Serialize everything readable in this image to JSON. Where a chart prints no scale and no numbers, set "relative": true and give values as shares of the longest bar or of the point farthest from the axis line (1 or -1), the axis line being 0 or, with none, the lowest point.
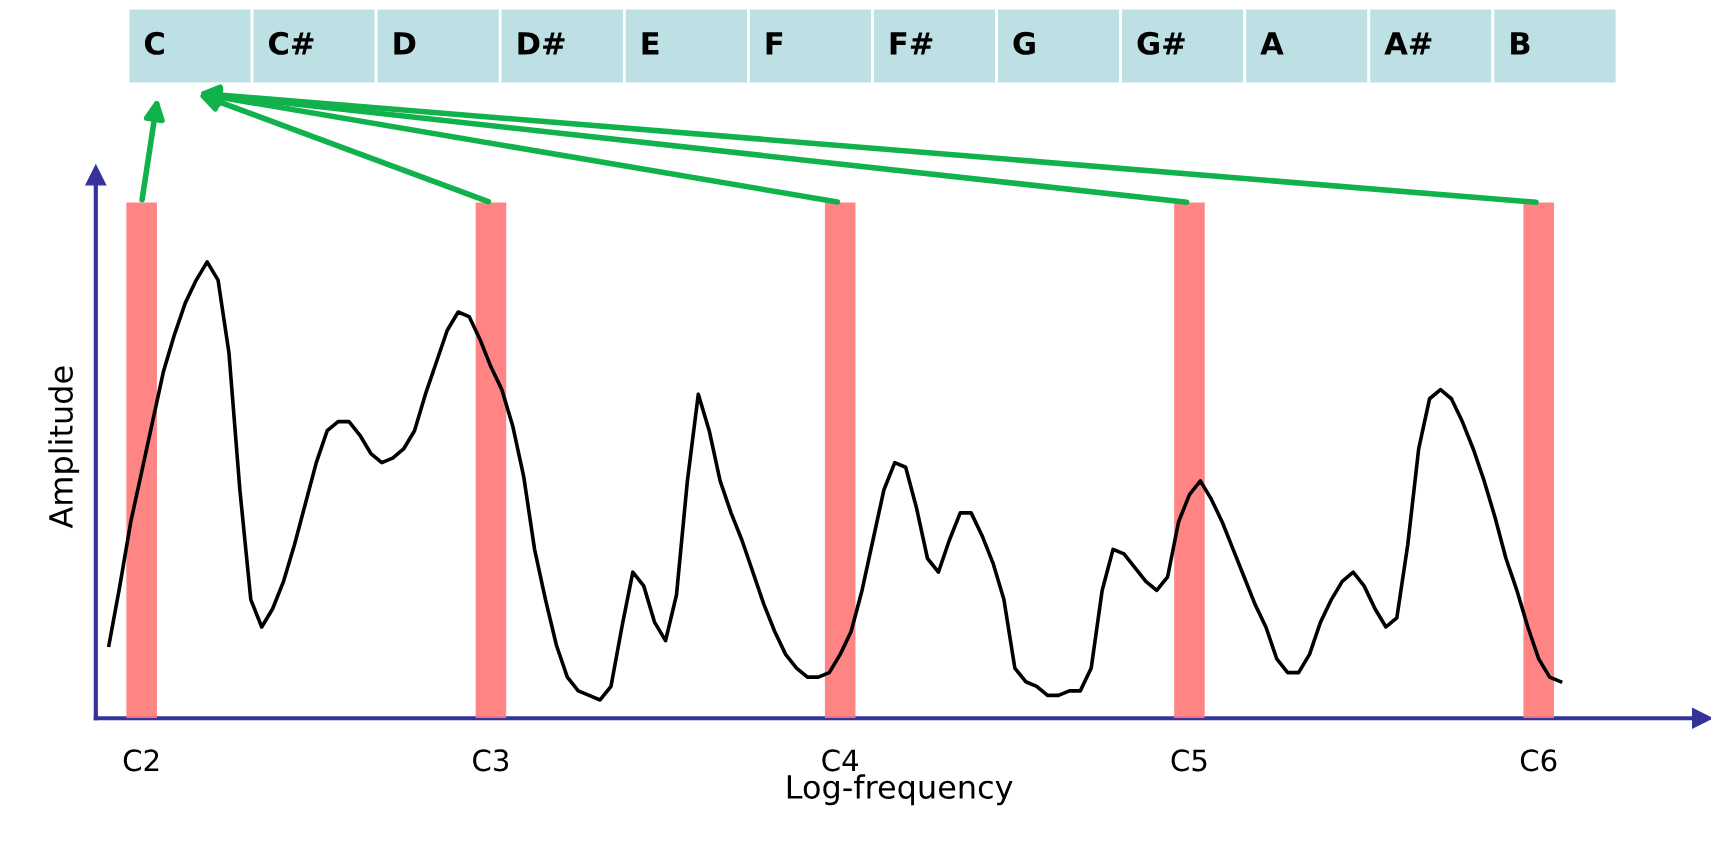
{
  "chart_data": {
    "type": "line",
    "relative": true,
    "xlabel": "Log-frequency",
    "ylabel": "Amplitude",
    "categories": [
      null,
      null,
      null,
      "C2",
      null,
      null,
      null,
      null,
      null,
      null,
      null,
      null,
      null,
      null,
      null,
      null,
      null,
      null,
      null,
      null,
      null,
      null,
      null,
      null,
      null,
      null,
      null,
      null,
      null,
      null,
      null,
      null,
      null,
      null,
      null,
      "C3",
      null,
      null,
      null,
      null,
      null,
      null,
      null,
      null,
      null,
      null,
      null,
      null,
      null,
      null,
      null,
      null,
      null,
      null,
      null,
      null,
      null,
      null,
      null,
      null,
      null,
      null,
      null,
      null,
      null,
      null,
      null,
      "C4",
      null,
      null,
      null,
      null,
      null,
      null,
      null,
      null,
      null,
      null,
      null,
      null,
      null,
      null,
      null,
      null,
      null,
      null,
      null,
      null,
      null,
      null,
      null,
      null,
      null,
      null,
      null,
      null,
      null,
      null,
      null,
      "C5",
      null,
      null,
      null,
      null,
      null,
      null,
      null,
      null,
      null,
      null,
      null,
      null,
      null,
      null,
      null,
      null,
      null,
      null,
      null,
      null,
      null,
      null,
      null,
      null,
      null,
      null,
      null,
      null,
      null,
      null,
      null,
      "C6",
      null,
      null
    ],
    "annotations": [
      "C",
      "C#",
      "D",
      "D#",
      "E",
      "F",
      "F#",
      "G",
      "G#",
      "A",
      "A#",
      "B"
    ],
    "series": [
      {
        "color": "#000000",
        "values": [
          0.16,
          0.29,
          0.43,
          0.54,
          0.65,
          0.76,
          0.84,
          0.91,
          0.96,
          1.0,
          0.96,
          0.8,
          0.5,
          0.26,
          0.2,
          0.24,
          0.3,
          0.38,
          0.47,
          0.56,
          0.63,
          0.65,
          0.65,
          0.62,
          0.58,
          0.56,
          0.57,
          0.59,
          0.63,
          0.71,
          0.78,
          0.85,
          0.89,
          0.88,
          0.83,
          0.77,
          0.72,
          0.64,
          0.53,
          0.37,
          0.26,
          0.16,
          0.09,
          0.06,
          0.05,
          0.04,
          0.07,
          0.2,
          0.32,
          0.29,
          0.21,
          0.17,
          0.27,
          0.52,
          0.71,
          0.63,
          0.52,
          0.45,
          0.39,
          0.32,
          0.25,
          0.19,
          0.14,
          0.11,
          0.09,
          0.09,
          0.1,
          0.14,
          0.19,
          0.28,
          0.39,
          0.5,
          0.56,
          0.55,
          0.46,
          0.35,
          0.32,
          0.39,
          0.45,
          0.45,
          0.4,
          0.34,
          0.26,
          0.11,
          0.08,
          0.07,
          0.05,
          0.05,
          0.06,
          0.06,
          0.11,
          0.28,
          0.37,
          0.36,
          0.33,
          0.3,
          0.28,
          0.31,
          0.43,
          0.49,
          0.52,
          0.48,
          0.43,
          0.37,
          0.31,
          0.25,
          0.2,
          0.13,
          0.1,
          0.1,
          0.14,
          0.21,
          0.26,
          0.3,
          0.32,
          0.29,
          0.24,
          0.2,
          0.22,
          0.38,
          0.59,
          0.7,
          0.72,
          0.7,
          0.65,
          0.59,
          0.52,
          0.44,
          0.35,
          0.28,
          0.2,
          0.13,
          0.09,
          0.08
        ]
      }
    ]
  }
}
